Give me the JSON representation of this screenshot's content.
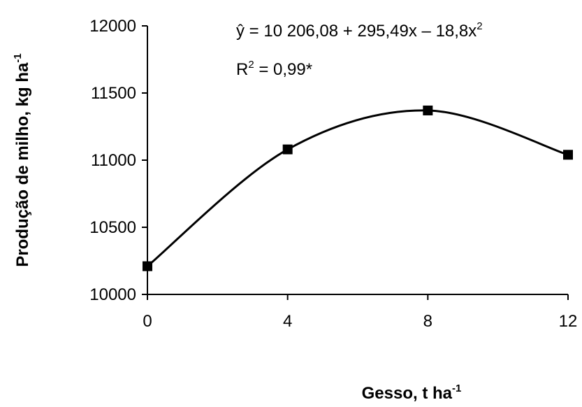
{
  "chart_data": {
    "type": "scatter",
    "xlabel": "Gesso, t ha",
    "xlabel_sup": "-1",
    "ylabel": "Produção de milho, kg ha",
    "ylabel_sup": "-1",
    "x_ticks": [
      "0",
      "4",
      "8",
      "12"
    ],
    "y_ticks": [
      "10000",
      "10500",
      "11000",
      "11500",
      "12000"
    ],
    "xlim": [
      0,
      12
    ],
    "ylim": [
      10000,
      12000
    ],
    "grid": false,
    "legend": "none",
    "series": [
      {
        "x": [
          0,
          4,
          8,
          12
        ],
        "y": [
          10210,
          11080,
          11370,
          11040
        ],
        "marker": "square",
        "color": "#000000"
      }
    ],
    "fit": {
      "type": "quadratic",
      "coefficients": [
        10206.08,
        295.49,
        -18.8
      ],
      "color": "#000000"
    },
    "annotations": {
      "equation": "ŷ  = 10 206,08 + 295,49x – 18,8x",
      "equation_sup": "2",
      "r2_prefix": "R",
      "r2_sup": "2",
      "r2_value": " = 0,99*"
    }
  }
}
